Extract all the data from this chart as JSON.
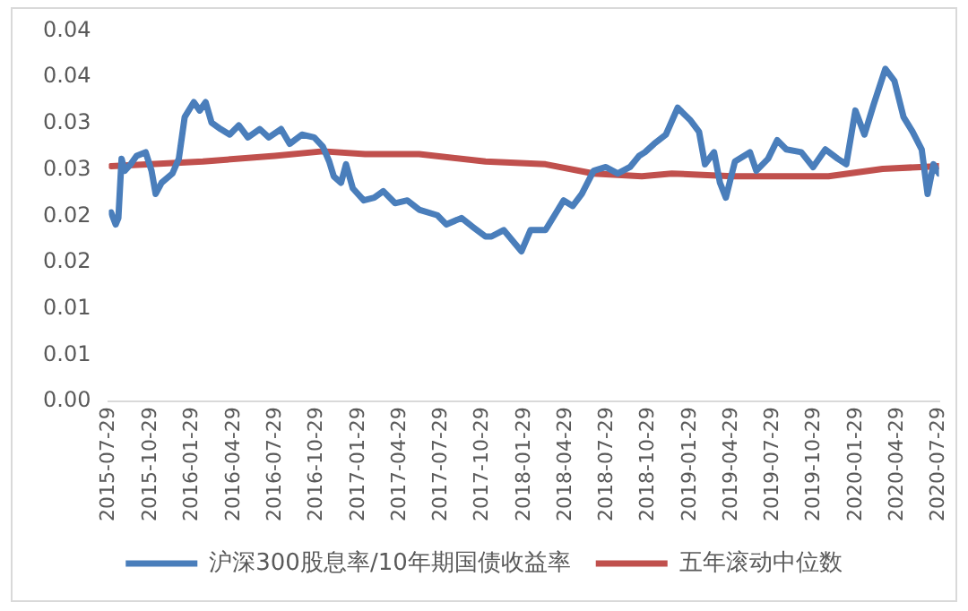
{
  "chart_data": {
    "type": "line",
    "xlim": [
      "2015-07-29",
      "2020-07-29"
    ],
    "xticks": [
      "2015-07-29",
      "2015-10-29",
      "2016-01-29",
      "2016-04-29",
      "2016-07-29",
      "2016-10-29",
      "2017-01-29",
      "2017-04-29",
      "2017-07-29",
      "2017-10-29",
      "2018-01-29",
      "2018-04-29",
      "2018-07-29",
      "2018-10-29",
      "2019-01-29",
      "2019-04-29",
      "2019-07-29",
      "2019-10-29",
      "2020-01-29",
      "2020-04-29",
      "2020-07-29"
    ],
    "ylim": [
      0,
      0.04
    ],
    "yticks": [
      {
        "value": 0,
        "label": "0.00"
      },
      {
        "value": 0.005,
        "label": "0.01"
      },
      {
        "value": 0.01,
        "label": "0.01"
      },
      {
        "value": 0.015,
        "label": "0.02"
      },
      {
        "value": 0.02,
        "label": "0.02"
      },
      {
        "value": 0.025,
        "label": "0.03"
      },
      {
        "value": 0.03,
        "label": "0.03"
      },
      {
        "value": 0.035,
        "label": "0.04"
      },
      {
        "value": 0.04,
        "label": "0.04"
      }
    ],
    "grid": false,
    "legend": "bottom",
    "marker": "none",
    "line_style": "solid",
    "series": [
      {
        "name": "沪深300股息率/10年期国债收益率",
        "color": "#4a7ebb",
        "x": [
          "2015-08-03",
          "2015-08-13",
          "2015-08-19",
          "2015-08-26",
          "2015-09-02",
          "2015-09-15",
          "2015-09-28",
          "2015-10-18",
          "2015-10-31",
          "2015-11-09",
          "2015-11-22",
          "2015-12-16",
          "2015-12-30",
          "2016-01-12",
          "2016-02-01",
          "2016-02-14",
          "2016-02-27",
          "2016-03-11",
          "2016-03-31",
          "2016-04-20",
          "2016-05-10",
          "2016-05-30",
          "2016-06-25",
          "2016-07-15",
          "2016-08-11",
          "2016-08-30",
          "2016-09-26",
          "2016-10-23",
          "2016-11-11",
          "2016-11-25",
          "2016-12-05",
          "2016-12-21",
          "2017-01-01",
          "2017-01-16",
          "2017-02-09",
          "2017-03-04",
          "2017-03-24",
          "2017-04-19",
          "2017-05-16",
          "2017-06-11",
          "2017-07-21",
          "2017-08-10",
          "2017-09-12",
          "2017-10-08",
          "2017-11-04",
          "2017-11-17",
          "2017-12-14",
          "2018-01-22",
          "2018-02-11",
          "2018-03-16",
          "2018-04-05",
          "2018-04-25",
          "2018-05-15",
          "2018-06-04",
          "2018-06-30",
          "2018-07-27",
          "2018-08-22",
          "2018-09-18",
          "2018-10-08",
          "2018-10-21",
          "2018-11-10",
          "2018-12-06",
          "2019-01-01",
          "2019-01-28",
          "2019-02-17",
          "2019-03-02",
          "2019-03-22",
          "2019-04-04",
          "2019-04-17",
          "2019-05-07",
          "2019-06-09",
          "2019-06-23",
          "2019-07-19",
          "2019-08-08",
          "2019-08-28",
          "2019-09-30",
          "2019-10-26",
          "2019-11-22",
          "2019-12-19",
          "2020-01-07",
          "2020-01-27",
          "2020-02-16",
          "2020-03-07",
          "2020-04-02",
          "2020-04-22",
          "2020-05-12",
          "2020-06-01",
          "2020-06-21",
          "2020-07-04",
          "2020-07-17",
          "2020-07-29"
        ],
        "values": [
          0.0204,
          0.0191,
          0.0198,
          0.0262,
          0.0249,
          0.0256,
          0.0265,
          0.0269,
          0.0249,
          0.0224,
          0.0236,
          0.0246,
          0.0262,
          0.0307,
          0.0323,
          0.0314,
          0.0323,
          0.0301,
          0.0294,
          0.0288,
          0.0298,
          0.0285,
          0.0294,
          0.0285,
          0.0294,
          0.0278,
          0.0288,
          0.0285,
          0.0275,
          0.0259,
          0.0243,
          0.0236,
          0.0256,
          0.023,
          0.0217,
          0.022,
          0.0227,
          0.0214,
          0.0217,
          0.0207,
          0.0201,
          0.0191,
          0.0198,
          0.0188,
          0.0178,
          0.0178,
          0.0185,
          0.0162,
          0.0185,
          0.0185,
          0.0201,
          0.0217,
          0.0211,
          0.0224,
          0.0249,
          0.0253,
          0.0246,
          0.0253,
          0.0265,
          0.0269,
          0.0278,
          0.0288,
          0.0317,
          0.0304,
          0.0291,
          0.0256,
          0.0269,
          0.0236,
          0.022,
          0.0259,
          0.0269,
          0.0249,
          0.0262,
          0.0282,
          0.0272,
          0.0269,
          0.0253,
          0.0272,
          0.0262,
          0.0256,
          0.0314,
          0.0288,
          0.032,
          0.0359,
          0.0346,
          0.0307,
          0.0291,
          0.0272,
          0.0224,
          0.0256,
          0.0246
        ]
      },
      {
        "name": "五年滚动中位数",
        "color": "#c0504d",
        "x": [
          "2015-08-03",
          "2016-02-21",
          "2016-07-28",
          "2016-11-11",
          "2017-02-12",
          "2017-06-11",
          "2017-11-04",
          "2018-03-16",
          "2018-06-30",
          "2018-10-14",
          "2018-12-19",
          "2019-05-01",
          "2019-11-29",
          "2020-03-27",
          "2020-07-29"
        ],
        "values": [
          0.0254,
          0.0259,
          0.0265,
          0.027,
          0.0267,
          0.0267,
          0.0259,
          0.0256,
          0.0246,
          0.0243,
          0.0246,
          0.0243,
          0.0243,
          0.0251,
          0.0254
        ]
      }
    ]
  }
}
